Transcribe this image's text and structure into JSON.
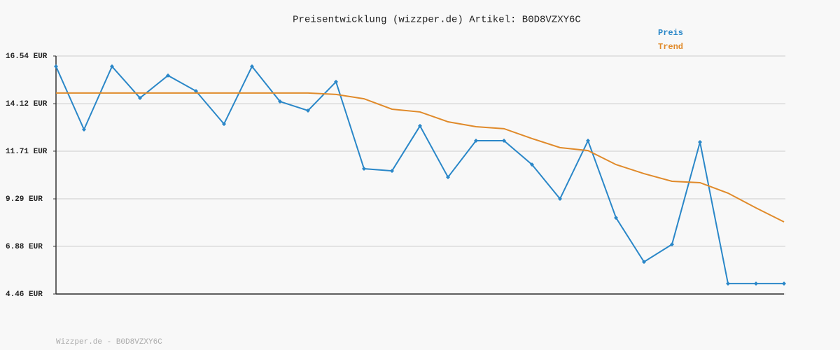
{
  "chart_data": {
    "type": "line",
    "title": "Preisentwicklung (wizzper.de) Artikel: B0D8VZXY6C",
    "footer": "Wizzper.de - B0D8VZXY6C",
    "categories": [
      null,
      null,
      null,
      null,
      null,
      null,
      null,
      null,
      null,
      null,
      null,
      null,
      null,
      null,
      null,
      null,
      null,
      null,
      null,
      null,
      null,
      null,
      null,
      null,
      null,
      null,
      null
    ],
    "series": [
      {
        "name": "Preis",
        "color": "#2a87c8",
        "markers": true,
        "values": [
          16.01,
          12.81,
          16.01,
          14.41,
          15.55,
          14.76,
          13.09,
          16.01,
          14.23,
          13.77,
          15.23,
          10.82,
          10.71,
          12.99,
          10.39,
          12.24,
          12.24,
          11.03,
          9.29,
          12.24,
          8.33,
          6.09,
          6.98,
          12.17,
          4.99,
          4.99,
          4.99
        ]
      },
      {
        "name": "Trend",
        "color": "#e08a2a",
        "markers": false,
        "values": [
          14.66,
          14.66,
          14.66,
          14.66,
          14.66,
          14.66,
          14.66,
          14.66,
          14.66,
          14.66,
          14.59,
          14.37,
          13.84,
          13.7,
          13.2,
          12.95,
          12.85,
          12.35,
          11.89,
          11.74,
          11.03,
          10.57,
          10.18,
          10.11,
          9.58,
          8.83,
          8.12
        ]
      }
    ],
    "ylim": [
      4.46,
      16.54
    ],
    "yticks": [
      {
        "value": 4.46,
        "label": "4.46 EUR"
      },
      {
        "value": 6.88,
        "label": "6.88 EUR"
      },
      {
        "value": 9.29,
        "label": "9.29 EUR"
      },
      {
        "value": 11.71,
        "label": "11.71 EUR"
      },
      {
        "value": 14.12,
        "label": "14.12 EUR"
      },
      {
        "value": 16.54,
        "label": "16.54 EUR"
      }
    ],
    "grid": true,
    "legend": "upper-right"
  }
}
